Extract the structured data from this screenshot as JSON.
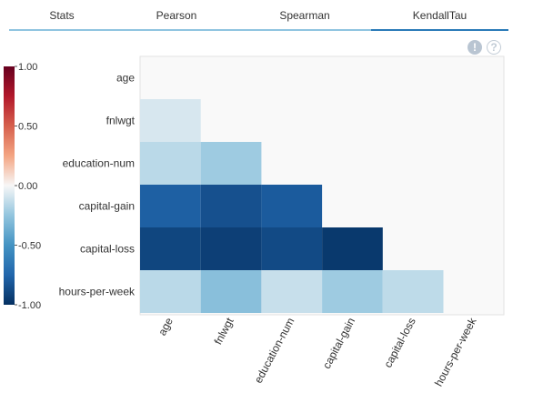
{
  "tabs": [
    {
      "label": "Stats",
      "active": false
    },
    {
      "label": "Pearson",
      "active": false
    },
    {
      "label": "Spearman",
      "active": false
    },
    {
      "label": "KendallTau",
      "active": true
    }
  ],
  "icons": {
    "info": "exclamation-icon",
    "help": "help-icon",
    "info_glyph": "!",
    "help_glyph": "?"
  },
  "chart_data": {
    "type": "heatmap",
    "title": "",
    "variables": [
      "age",
      "fnlwgt",
      "education-num",
      "capital-gain",
      "capital-loss",
      "hours-per-week"
    ],
    "colorbar": {
      "min": -1.0,
      "max": 1.0,
      "ticks": [
        "1.00",
        "0.50",
        "0.00",
        "-0.50",
        "-1.00"
      ]
    },
    "colors": {
      "neg": "#053061",
      "mid": "#f7f7f7",
      "pos": "#67001f",
      "plot_bg": "#f9f9f9"
    },
    "values": [
      [
        null,
        null,
        null,
        null,
        null,
        null
      ],
      [
        -0.08,
        null,
        null,
        null,
        null,
        null
      ],
      [
        -0.15,
        -0.22,
        null,
        null,
        null,
        null
      ],
      [
        -0.78,
        -0.85,
        -0.8,
        null,
        null,
        null
      ],
      [
        -0.9,
        -0.93,
        -0.88,
        -0.96,
        null,
        null
      ],
      [
        -0.15,
        -0.28,
        -0.12,
        -0.22,
        -0.14,
        null
      ]
    ]
  }
}
